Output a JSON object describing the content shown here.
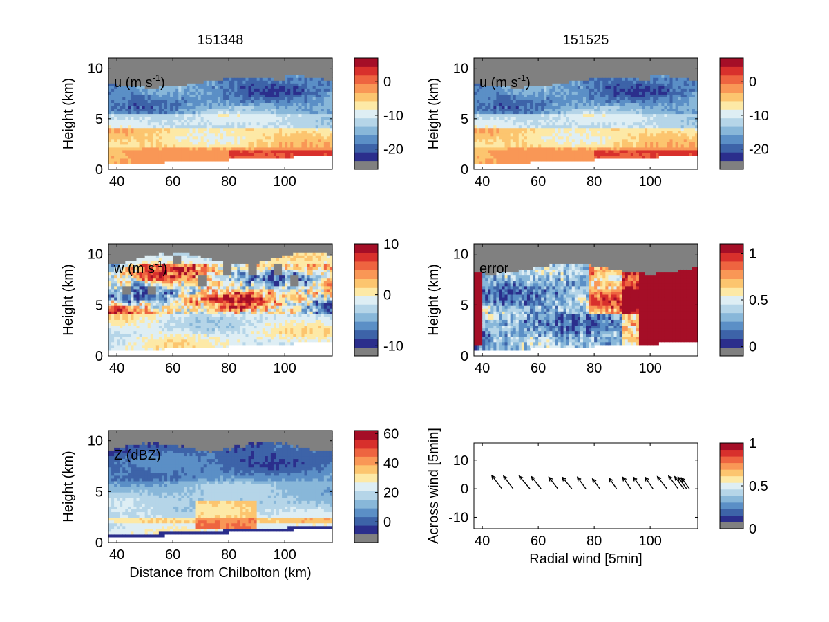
{
  "colors": {
    "no_data": "#808080",
    "palette": [
      "#2b2e8c",
      "#3d63a8",
      "#5b8fc6",
      "#88b7d9",
      "#b5d5e8",
      "#deeef4",
      "#fde9a6",
      "#fcc56f",
      "#f99756",
      "#ee6440",
      "#d8302c",
      "#a50e27"
    ],
    "axis": "#000000"
  },
  "chart_data": [
    {
      "id": "u1",
      "type": "heatmap",
      "title": "151348",
      "panel_label": "u (m s",
      "panel_label_sup": "-1",
      "panel_label_end": ")",
      "ylabel": "Height (km)",
      "xlabel": "",
      "xlim": [
        37,
        117
      ],
      "ylim": [
        0,
        11
      ],
      "xticks": [
        40,
        60,
        80,
        100
      ],
      "yticks": [
        0,
        5,
        10
      ],
      "clim": [
        -26,
        7
      ],
      "cticks": [
        0,
        -10,
        -20
      ],
      "field": "u"
    },
    {
      "id": "u2",
      "type": "heatmap",
      "title": "151525",
      "panel_label": "u (m s",
      "panel_label_sup": "-1",
      "panel_label_end": ")",
      "ylabel": "Height (km)",
      "xlabel": "",
      "xlim": [
        37,
        117
      ],
      "ylim": [
        0,
        11
      ],
      "xticks": [
        40,
        60,
        80,
        100
      ],
      "yticks": [
        0,
        5,
        10
      ],
      "clim": [
        -26,
        7
      ],
      "cticks": [
        0,
        -10,
        -20
      ],
      "field": "u"
    },
    {
      "id": "w",
      "type": "heatmap",
      "title": "",
      "panel_label": "w (m s",
      "panel_label_sup": "-1",
      "panel_label_end": ")",
      "ylabel": "Height (km)",
      "xlabel": "",
      "xlim": [
        37,
        117
      ],
      "ylim": [
        0,
        11
      ],
      "xticks": [
        40,
        60,
        80,
        100
      ],
      "yticks": [
        0,
        5,
        10
      ],
      "clim": [
        -12,
        10
      ],
      "cticks": [
        10,
        0,
        -10
      ],
      "field": "w"
    },
    {
      "id": "err",
      "type": "heatmap",
      "title": "",
      "panel_label": "error",
      "panel_label_sup": "",
      "panel_label_end": "",
      "ylabel": "Height (km)",
      "xlabel": "",
      "xlim": [
        37,
        117
      ],
      "ylim": [
        0,
        11
      ],
      "xticks": [
        40,
        60,
        80,
        100
      ],
      "yticks": [
        0,
        5,
        10
      ],
      "clim": [
        -0.1,
        1.1
      ],
      "cticks": [
        1,
        0.5,
        0
      ],
      "field": "error"
    },
    {
      "id": "z",
      "type": "heatmap",
      "title": "",
      "panel_label": "Z (dBZ)",
      "panel_label_sup": "",
      "panel_label_end": "",
      "ylabel": "Height (km)",
      "xlabel": "Distance from Chilbolton (km)",
      "xlim": [
        37,
        117
      ],
      "ylim": [
        0,
        11
      ],
      "xticks": [
        40,
        60,
        80,
        100
      ],
      "yticks": [
        0,
        5,
        10
      ],
      "clim": [
        -14,
        62
      ],
      "cticks": [
        60,
        40,
        20,
        0
      ],
      "field": "Z"
    },
    {
      "id": "q",
      "type": "quiver",
      "title": "",
      "panel_label": "",
      "ylabel": "Across wind [5min]",
      "xlabel": "Radial wind [5min]",
      "xlim": [
        37,
        117
      ],
      "ylim": [
        -14,
        16
      ],
      "xticks": [
        40,
        60,
        80,
        100
      ],
      "yticks": [
        -10,
        0,
        10
      ],
      "clim": [
        0,
        1
      ],
      "cticks": [
        1,
        0.5,
        0
      ],
      "arrows": [
        {
          "x": 47,
          "y": 0,
          "u": -3.6,
          "v": 4.6
        },
        {
          "x": 51,
          "y": 0,
          "u": -3.4,
          "v": 4.4
        },
        {
          "x": 57,
          "y": 0,
          "u": -3.8,
          "v": 4.4
        },
        {
          "x": 61,
          "y": 0,
          "u": -3.4,
          "v": 4.2
        },
        {
          "x": 67,
          "y": 0,
          "u": -3.2,
          "v": 4.0
        },
        {
          "x": 72,
          "y": 0,
          "u": -3.4,
          "v": 4.0
        },
        {
          "x": 77,
          "y": 0,
          "u": -3.0,
          "v": 4.0
        },
        {
          "x": 82,
          "y": 0,
          "u": -2.6,
          "v": 3.4
        },
        {
          "x": 88,
          "y": 0,
          "u": -2.6,
          "v": 3.6
        },
        {
          "x": 93,
          "y": 0,
          "u": -2.8,
          "v": 4.0
        },
        {
          "x": 97,
          "y": 0,
          "u": -3.0,
          "v": 4.0
        },
        {
          "x": 101,
          "y": 0,
          "u": -2.8,
          "v": 4.0
        },
        {
          "x": 106,
          "y": 0,
          "u": -3.4,
          "v": 4.2
        },
        {
          "x": 110,
          "y": 0,
          "u": -3.4,
          "v": 4.4
        },
        {
          "x": 112,
          "y": 0,
          "u": -3.2,
          "v": 4.2
        },
        {
          "x": 113,
          "y": 0,
          "u": -3.0,
          "v": 4.0
        },
        {
          "x": 114,
          "y": 0,
          "u": -2.8,
          "v": 3.8
        }
      ]
    }
  ]
}
